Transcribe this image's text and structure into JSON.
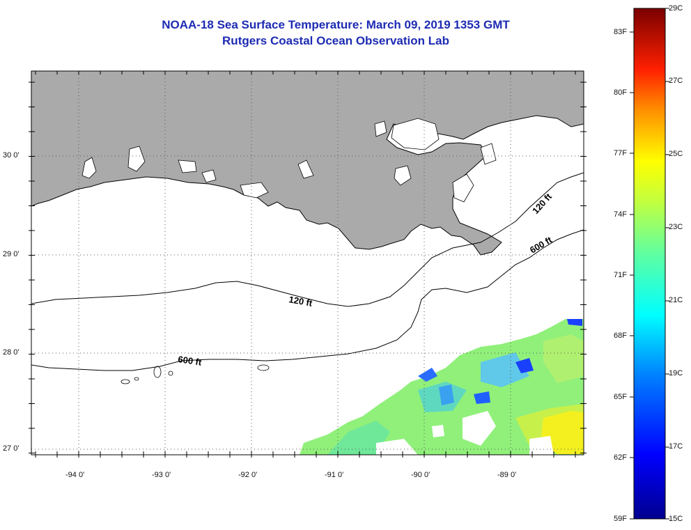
{
  "header": {
    "title": "NOAA-18 Sea Surface Temperature:  March 09, 2019 1353 GMT",
    "subtitle": "Rutgers Coastal Ocean Observation Lab"
  },
  "map": {
    "lat_labels": [
      "30 0'",
      "29 0'",
      "28 0'",
      "27 0'"
    ],
    "lon_labels": [
      "-94 0'",
      "-93 0'",
      "-92 0'",
      "-91 0'",
      "-90 0'",
      "-89 0'"
    ],
    "contours": {
      "shallow": "120 ft",
      "deep": "600 ft",
      "shallow_east": "120 ft",
      "deep_east": "600 ft"
    },
    "colors": {
      "land": "#aaaaaa",
      "water_no_data": "#ffffff",
      "frame": "#000000"
    }
  },
  "colorbar": {
    "fahrenheit_labels": [
      "83F",
      "80F",
      "77F",
      "74F",
      "71F",
      "68F",
      "65F",
      "62F",
      "59F"
    ],
    "celsius_labels": [
      "29C",
      "27C",
      "25C",
      "23C",
      "21C",
      "19C",
      "17C",
      "15C"
    ],
    "range_c": [
      15,
      29
    ],
    "colors": [
      "#00008f",
      "#0000ff",
      "#0080ff",
      "#00ffff",
      "#80ff80",
      "#ffff00",
      "#ff8000",
      "#ff0000",
      "#800000"
    ]
  }
}
